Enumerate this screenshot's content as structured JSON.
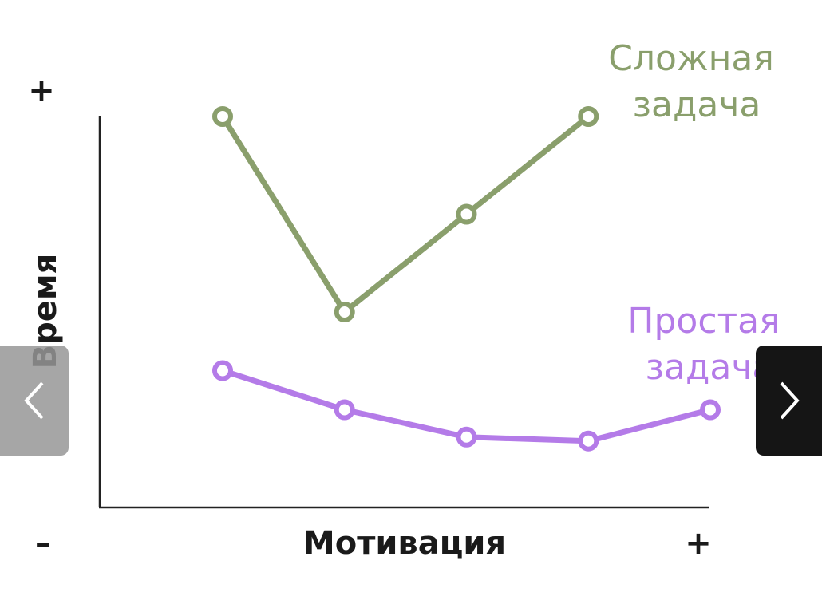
{
  "chart_data": {
    "type": "line",
    "xlabel": "Мотивация",
    "ylabel": "Время",
    "x_min_label": "–",
    "x_max_label": "+",
    "y_max_label": "+",
    "x": [
      1,
      2,
      3,
      4,
      5
    ],
    "xlim": [
      0,
      5.5
    ],
    "ylim": [
      0,
      10
    ],
    "series": [
      {
        "name_lines": [
          "Сложная",
          "задача"
        ],
        "color": "#8a9f6c",
        "x": [
          1,
          2,
          3,
          4
        ],
        "values": [
          10,
          5,
          7.5,
          10
        ]
      },
      {
        "name_lines": [
          "Простая",
          "задача"
        ],
        "color": "#b47be8",
        "x": [
          1,
          2,
          3,
          4,
          5
        ],
        "values": [
          3.5,
          2.5,
          1.8,
          1.7,
          2.5
        ]
      }
    ]
  },
  "nav": {
    "prev_icon": "chevron-left-icon",
    "next_icon": "chevron-right-icon"
  }
}
